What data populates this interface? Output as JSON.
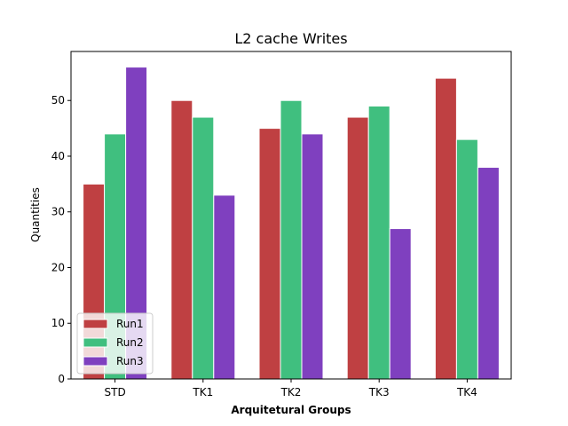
{
  "chart_data": {
    "type": "bar",
    "title": "L2 cache Writes",
    "xlabel": "Arquitetural Groups",
    "ylabel": "Quantities",
    "categories": [
      "STD",
      "TK1",
      "TK2",
      "TK3",
      "TK4"
    ],
    "series": [
      {
        "name": "Run1",
        "color": "#bf4042",
        "values": [
          35,
          50,
          45,
          47,
          54
        ]
      },
      {
        "name": "Run2",
        "color": "#40bf7f",
        "values": [
          44,
          47,
          50,
          49,
          43
        ]
      },
      {
        "name": "Run3",
        "color": "#7f40bf",
        "values": [
          56,
          33,
          44,
          27,
          38
        ]
      }
    ],
    "ylim": [
      0,
      58.8
    ],
    "yticks": [
      0,
      10,
      20,
      30,
      40,
      50
    ],
    "grid": false,
    "legend_position": "lower-left"
  }
}
